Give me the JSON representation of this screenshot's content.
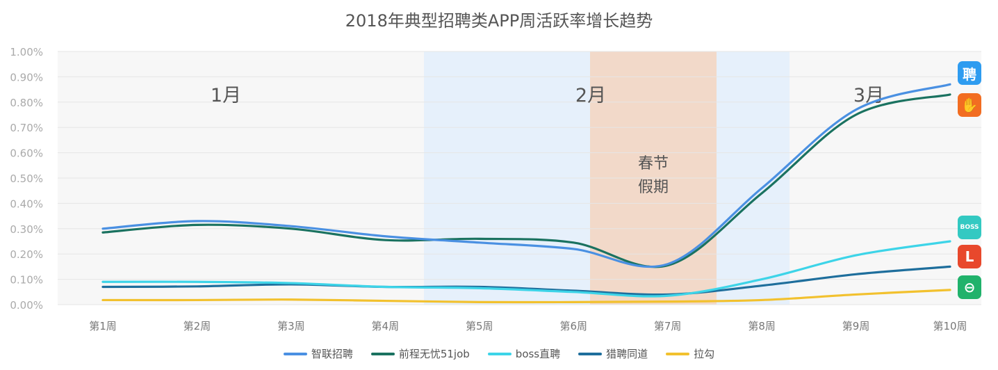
{
  "chart_data": {
    "type": "line",
    "title": "2018年典型招聘类APP周活跃率增长趋势",
    "categories": [
      "第1周",
      "第2周",
      "第3周",
      "第4周",
      "第5周",
      "第6周",
      "第7周",
      "第8周",
      "第9周",
      "第10周"
    ],
    "yticks": [
      "0.00%",
      "0.10%",
      "0.20%",
      "0.30%",
      "0.40%",
      "0.50%",
      "0.60%",
      "0.70%",
      "0.80%",
      "0.90%",
      "1.00%"
    ],
    "ylim": [
      0,
      1.0
    ],
    "y_unit": "%",
    "grid": true,
    "legend_position": "bottom",
    "series": [
      {
        "name": "智联招聘",
        "color": "#4a90e2",
        "values": [
          0.3,
          0.33,
          0.31,
          0.27,
          0.245,
          0.22,
          0.16,
          0.46,
          0.77,
          0.87
        ]
      },
      {
        "name": "前程无忧51job",
        "color": "#1a7260",
        "values": [
          0.285,
          0.315,
          0.3,
          0.255,
          0.26,
          0.245,
          0.155,
          0.44,
          0.75,
          0.83
        ]
      },
      {
        "name": "boss直聘",
        "color": "#3dd4e8",
        "values": [
          0.09,
          0.09,
          0.085,
          0.07,
          0.065,
          0.05,
          0.035,
          0.1,
          0.195,
          0.25
        ]
      },
      {
        "name": "猎聘同道",
        "color": "#1e6e9c",
        "values": [
          0.07,
          0.072,
          0.08,
          0.07,
          0.07,
          0.055,
          0.04,
          0.075,
          0.12,
          0.15
        ]
      },
      {
        "name": "拉勾",
        "color": "#f2c12e",
        "values": [
          0.018,
          0.018,
          0.02,
          0.015,
          0.01,
          0.01,
          0.012,
          0.018,
          0.04,
          0.058
        ]
      }
    ],
    "period_bands": [
      {
        "label": "1月"
      },
      {
        "label": "2月"
      },
      {
        "label": "3月"
      }
    ],
    "highlight_band": {
      "label_line1": "春节",
      "label_line2": "假期"
    },
    "colors": {
      "grid": "#e6e6e6",
      "axis_text": "#aaaaaa",
      "band_light": "#e6f0fb",
      "band_holiday": "#f2d9c9",
      "band_gray": "#f7f7f7"
    }
  },
  "app_icons": [
    {
      "name": "zhaopin-icon",
      "glyph": "聘",
      "color": "#2e9cf0"
    },
    {
      "name": "51job-icon",
      "glyph": "✋",
      "color": "#f26d21"
    },
    {
      "name": "boss-icon",
      "glyph": "BOSS",
      "color": "#33c9c2"
    },
    {
      "name": "lagou-icon",
      "glyph": "L",
      "color": "#e8482c"
    },
    {
      "name": "liepin-icon",
      "glyph": "⊖",
      "color": "#20b26b"
    }
  ]
}
